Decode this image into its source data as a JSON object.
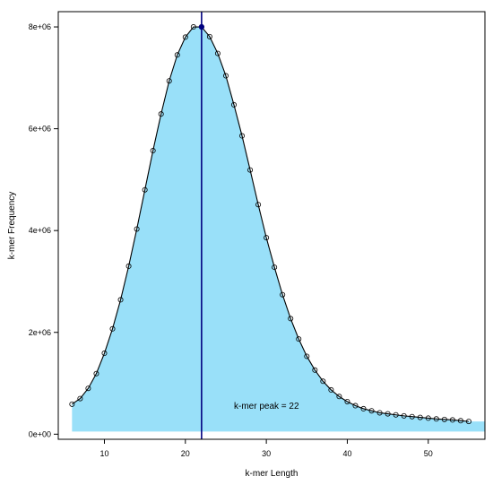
{
  "chart_data": {
    "type": "line",
    "title": "",
    "xlabel": "k-mer Length",
    "ylabel": "k-mer Frequency",
    "xlim": [
      4.3,
      57
    ],
    "ylim": [
      -100000,
      8300000
    ],
    "x_ticks": [
      10,
      20,
      30,
      40,
      50
    ],
    "x_tick_labels": [
      "10",
      "20",
      "30",
      "40",
      "50"
    ],
    "y_ticks": [
      0,
      2000000,
      4000000,
      6000000,
      8000000
    ],
    "y_tick_labels": [
      "0e+00",
      "2e+06",
      "4e+06",
      "6e+06",
      "8e+06"
    ],
    "grid": false,
    "legend": "none",
    "x": [
      6,
      7,
      8,
      9,
      10,
      11,
      12,
      13,
      14,
      15,
      16,
      17,
      18,
      19,
      20,
      21,
      22,
      23,
      24,
      25,
      26,
      27,
      28,
      29,
      30,
      31,
      32,
      33,
      34,
      35,
      36,
      37,
      38,
      39,
      40,
      41,
      42,
      43,
      44,
      45,
      46,
      47,
      48,
      49,
      50,
      51,
      52,
      53,
      54,
      55
    ],
    "values": [
      590000,
      700000,
      900000,
      1190000,
      1590000,
      2070000,
      2640000,
      3300000,
      4030000,
      4800000,
      5570000,
      6290000,
      6940000,
      7450000,
      7800000,
      8000000,
      8000000,
      7810000,
      7480000,
      7040000,
      6470000,
      5860000,
      5190000,
      4510000,
      3860000,
      3280000,
      2740000,
      2270000,
      1870000,
      1530000,
      1260000,
      1040000,
      870000,
      740000,
      640000,
      560000,
      500000,
      460000,
      420000,
      400000,
      380000,
      360000,
      345000,
      330000,
      315000,
      300000,
      290000,
      280000,
      265000,
      250000
    ],
    "fill_tail_value": 250000,
    "fill_color": "#99e0f9",
    "line_color": "#000000",
    "peak": {
      "x": 22,
      "y": 8000000,
      "line_color": "#000080",
      "label": "k-mer peak = 22",
      "label_x": 26,
      "label_y": 500000
    }
  }
}
